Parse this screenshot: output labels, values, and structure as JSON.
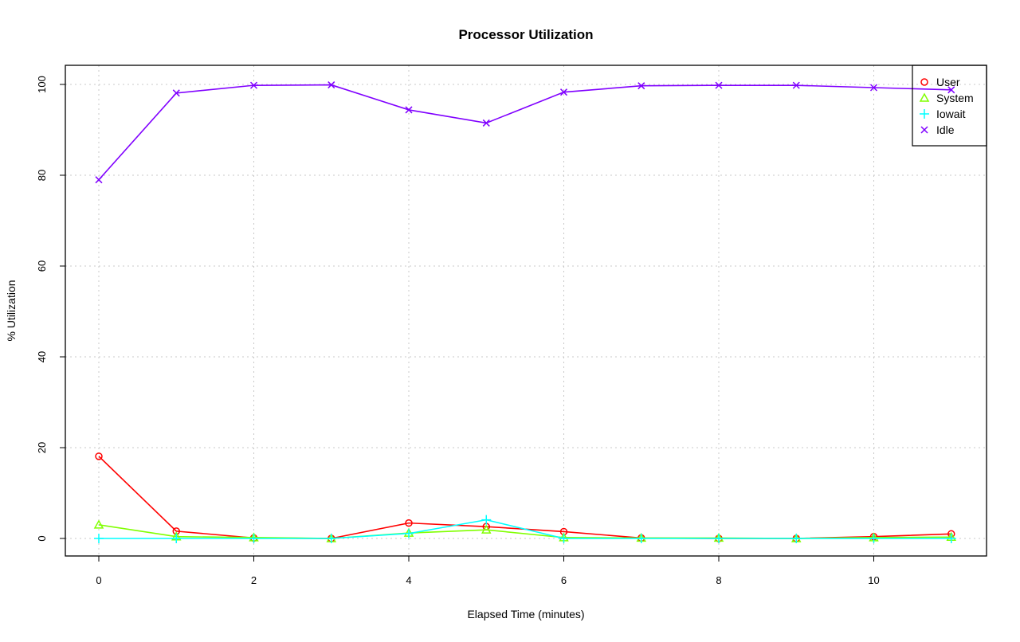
{
  "chart_data": {
    "type": "line",
    "title": "Processor Utilization",
    "xlabel": "Elapsed Time (minutes)",
    "ylabel": "% Utilization",
    "xlim": [
      -0.4,
      11.5
    ],
    "ylim": [
      -4,
      104
    ],
    "xticks": [
      0,
      2,
      4,
      6,
      8,
      10
    ],
    "yticks": [
      0,
      20,
      40,
      60,
      80,
      100
    ],
    "grid": true,
    "legend_position": "top-right",
    "x": [
      0,
      1,
      2,
      3,
      4,
      5,
      6,
      7,
      8,
      9,
      10,
      11
    ],
    "series": [
      {
        "name": "User",
        "color": "#ff0000",
        "marker": "circle",
        "values": [
          18.1,
          1.6,
          0.1,
          0.0,
          3.4,
          2.6,
          1.5,
          0.1,
          0.0,
          0.0,
          0.4,
          1.0
        ]
      },
      {
        "name": "System",
        "color": "#80ff00",
        "marker": "triangle",
        "values": [
          3.0,
          0.4,
          0.2,
          0.0,
          1.2,
          1.9,
          0.2,
          0.1,
          0.1,
          0.0,
          0.2,
          0.3
        ]
      },
      {
        "name": "Iowait",
        "color": "#00ffff",
        "marker": "plus",
        "values": [
          0.0,
          0.0,
          0.0,
          0.0,
          1.1,
          4.1,
          0.0,
          0.0,
          0.0,
          0.0,
          0.0,
          0.0
        ]
      },
      {
        "name": "Idle",
        "color": "#8000ff",
        "marker": "cross",
        "values": [
          79.0,
          98.1,
          99.8,
          99.9,
          94.4,
          91.5,
          98.3,
          99.7,
          99.8,
          99.8,
          99.3,
          98.8
        ]
      }
    ]
  }
}
